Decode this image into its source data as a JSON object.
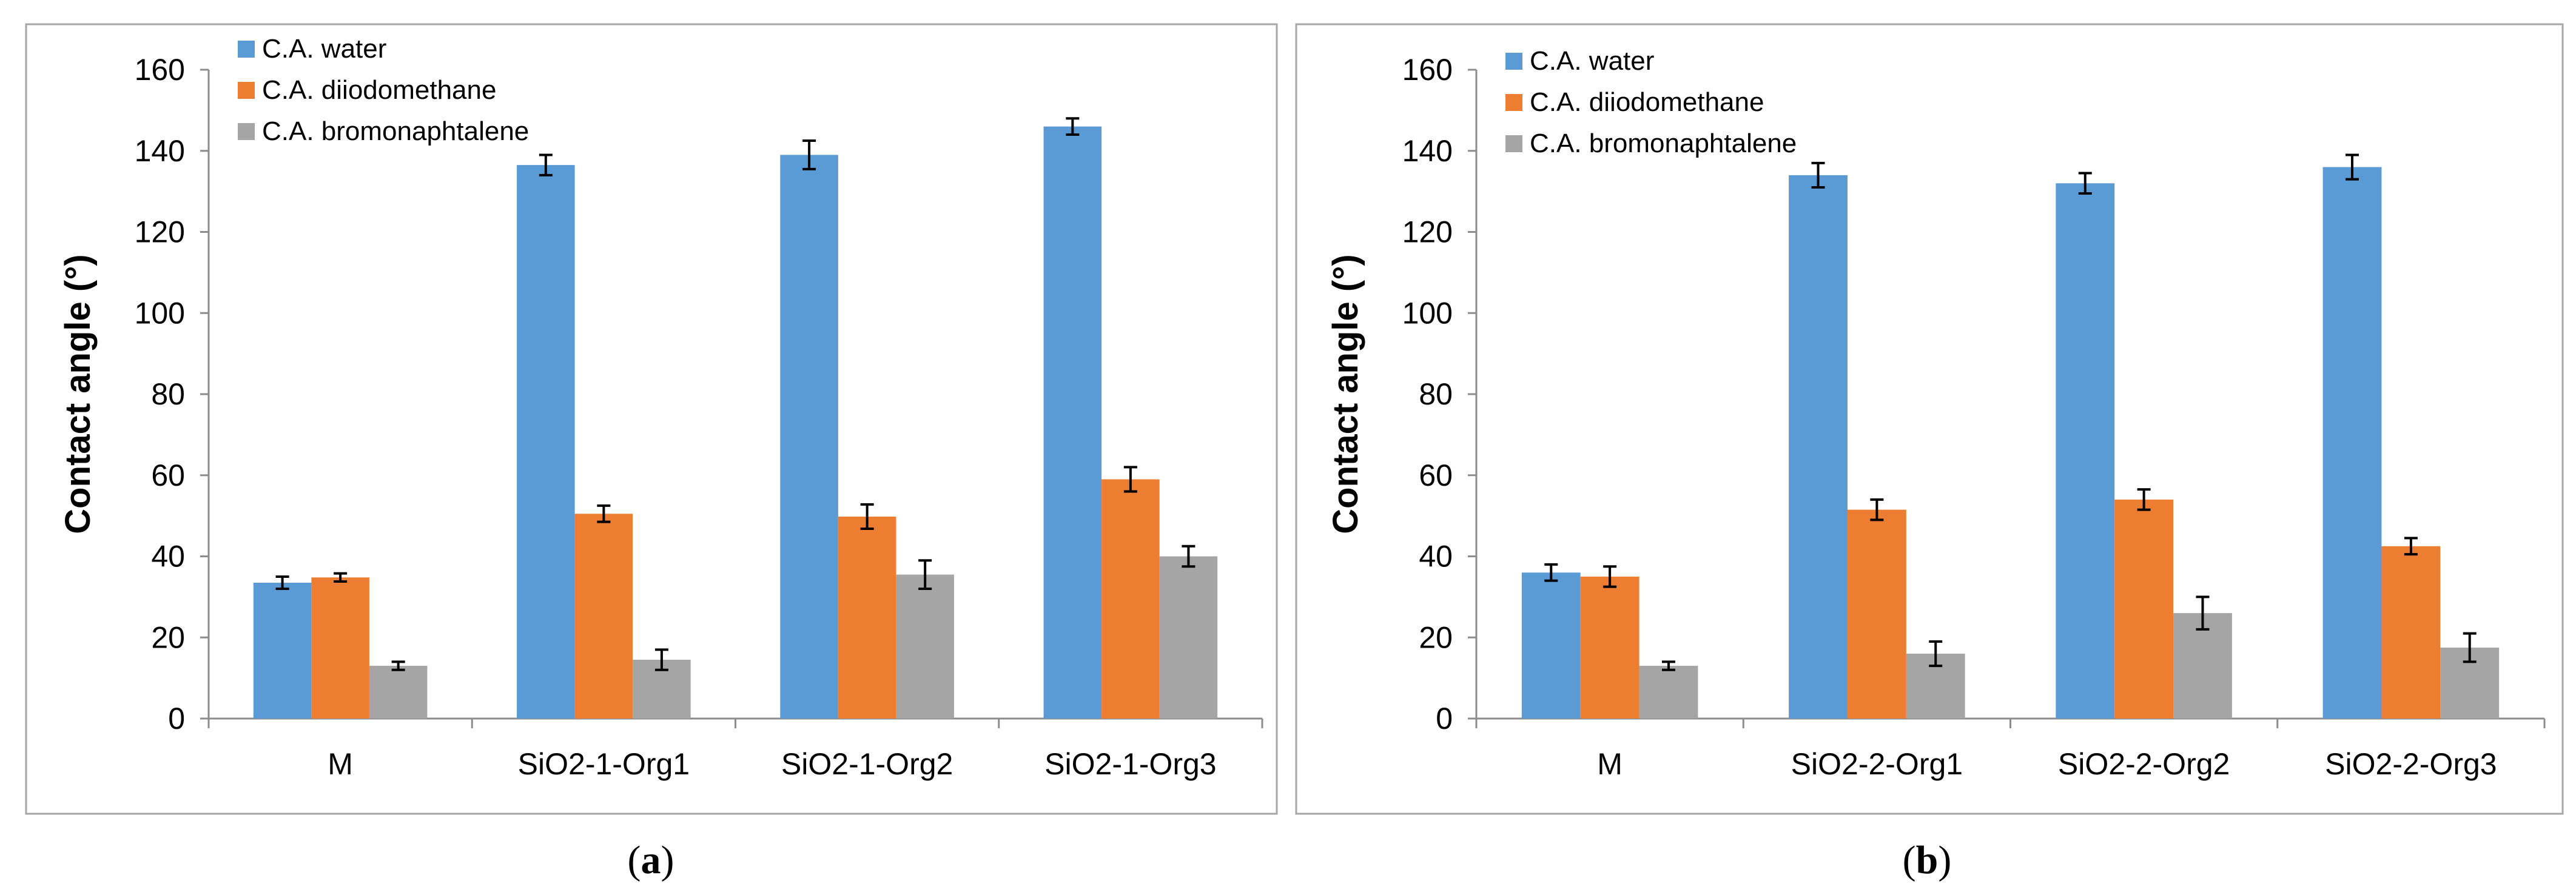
{
  "chart_data": [
    {
      "type": "bar",
      "panel_caption": {
        "open": "(",
        "letter": "a",
        "close": ")"
      },
      "ylabel": "Contact angle (°)",
      "ylim": [
        0,
        160
      ],
      "yticks": [
        0,
        20,
        40,
        60,
        80,
        100,
        120,
        140,
        160
      ],
      "categories": [
        "M",
        "SiO2-1-Org1",
        "SiO2-1-Org2",
        "SiO2-1-Org3"
      ],
      "legend_position": "top-left",
      "series": [
        {
          "name": "C.A. water",
          "color": "#5b9bd5",
          "values": [
            33.5,
            136.5,
            139,
            146
          ],
          "errors": [
            1.5,
            2.5,
            3.5,
            2
          ]
        },
        {
          "name": "C.A. diiodomethane",
          "color": "#ed7d31",
          "values": [
            34.8,
            50.5,
            49.8,
            59
          ],
          "errors": [
            1,
            2,
            3,
            3
          ]
        },
        {
          "name": "C.A. bromonaphtalene",
          "color": "#a5a5a5",
          "values": [
            13,
            14.5,
            35.5,
            40
          ],
          "errors": [
            1,
            2.5,
            3.5,
            2.5
          ]
        }
      ]
    },
    {
      "type": "bar",
      "panel_caption": {
        "open": "(",
        "letter": "b",
        "close": ")"
      },
      "ylabel": "Contact angle (°)",
      "ylim": [
        0,
        160
      ],
      "yticks": [
        0,
        20,
        40,
        60,
        80,
        100,
        120,
        140,
        160
      ],
      "categories": [
        "M",
        "SiO2-2-Org1",
        "SiO2-2-Org2",
        "SiO2-2-Org3"
      ],
      "legend_position": "top-left",
      "series": [
        {
          "name": "C.A. water",
          "color": "#5b9bd5",
          "values": [
            36,
            134,
            132,
            136
          ],
          "errors": [
            2,
            3,
            2.5,
            3
          ]
        },
        {
          "name": "C.A. diiodomethane",
          "color": "#ed7d31",
          "values": [
            35,
            51.5,
            54,
            42.5
          ],
          "errors": [
            2.5,
            2.5,
            2.5,
            2
          ]
        },
        {
          "name": "C.A. bromonaphtalene",
          "color": "#a5a5a5",
          "values": [
            13,
            16,
            26,
            17.5
          ],
          "errors": [
            1,
            3,
            4,
            3.5
          ]
        }
      ]
    }
  ]
}
